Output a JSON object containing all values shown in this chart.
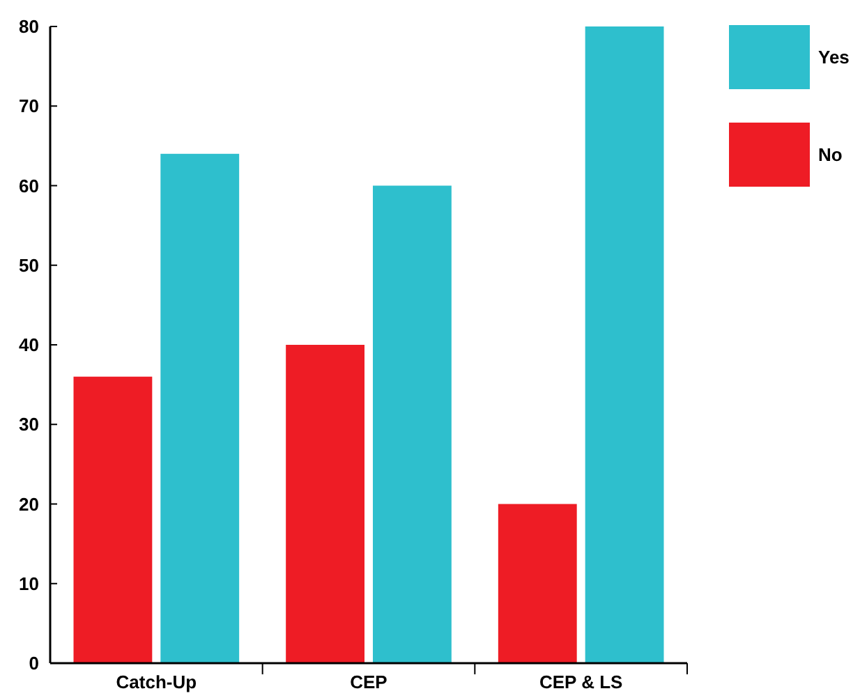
{
  "chart_data": {
    "type": "bar",
    "categories": [
      "Catch-Up",
      "CEP",
      "CEP & LS"
    ],
    "series": [
      {
        "name": "No",
        "color": "#ee1c25",
        "values": [
          36,
          40,
          20
        ]
      },
      {
        "name": "Yes",
        "color": "#2ebfcd",
        "values": [
          64,
          60,
          80
        ]
      }
    ],
    "ylim": [
      0,
      80
    ],
    "yticks": [
      0,
      10,
      20,
      30,
      40,
      50,
      60,
      70,
      80
    ],
    "grid": false,
    "legend": "top right"
  }
}
